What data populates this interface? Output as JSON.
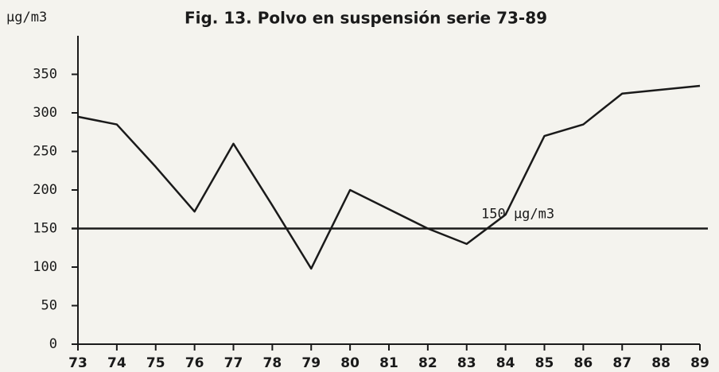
{
  "chart_data": {
    "type": "line",
    "title": "Fig. 13. Polvo en suspensión serie 73-89",
    "y_label": "µg/m3",
    "categories": [
      "73",
      "74",
      "75",
      "76",
      "77",
      "78",
      "79",
      "80",
      "81",
      "82",
      "83",
      "84",
      "85",
      "86",
      "87",
      "88",
      "89"
    ],
    "series": [
      {
        "name": "Polvo en suspensión",
        "color": "#1a1a1a",
        "values": [
          295,
          285,
          230,
          172,
          260,
          180,
          98,
          200,
          175,
          150,
          130,
          168,
          270,
          285,
          325,
          330,
          335
        ]
      }
    ],
    "reference_line": {
      "value": 150,
      "label": "150 µg/m3"
    },
    "ylim": [
      0,
      400
    ],
    "yticks": [
      0,
      50,
      100,
      150,
      200,
      250,
      300,
      350
    ],
    "grid": false
  }
}
